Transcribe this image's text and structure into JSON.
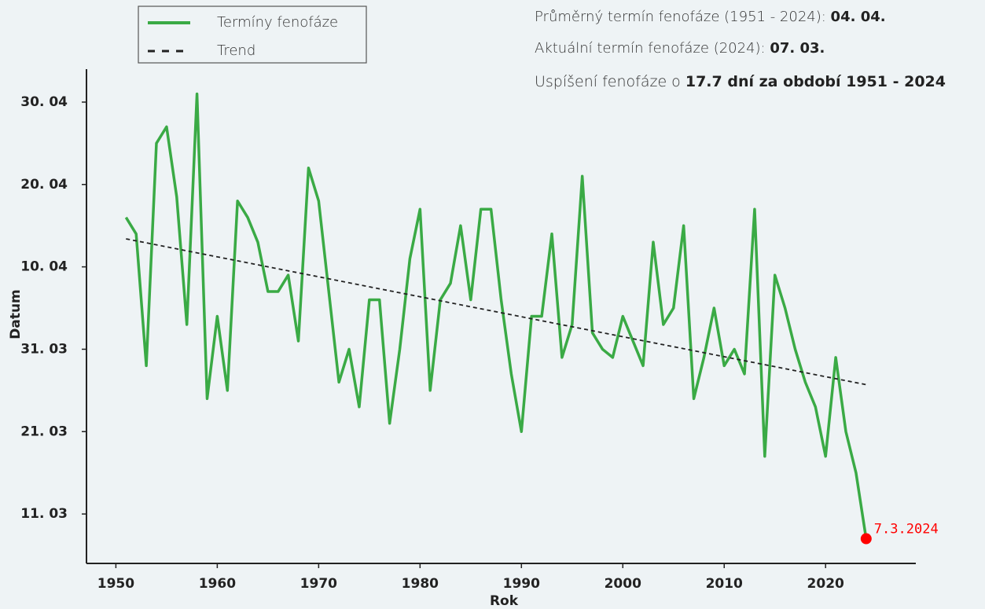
{
  "chart_data": {
    "type": "line",
    "x": [
      1951,
      1952,
      1953,
      1954,
      1955,
      1956,
      1957,
      1958,
      1959,
      1960,
      1961,
      1962,
      1963,
      1964,
      1965,
      1966,
      1967,
      1968,
      1969,
      1970,
      1971,
      1972,
      1973,
      1974,
      1975,
      1976,
      1977,
      1978,
      1979,
      1980,
      1981,
      1982,
      1983,
      1984,
      1985,
      1986,
      1987,
      1988,
      1989,
      1990,
      1991,
      1992,
      1993,
      1994,
      1995,
      1996,
      1997,
      1998,
      1999,
      2000,
      2001,
      2002,
      2003,
      2004,
      2005,
      2006,
      2007,
      2008,
      2009,
      2010,
      2011,
      2012,
      2013,
      2014,
      2015,
      2016,
      2017,
      2018,
      2019,
      2020,
      2021,
      2022,
      2023,
      2024
    ],
    "series": [
      {
        "name": "Termíny fenofáze",
        "color": "#3aaa45",
        "values": [
          106,
          104,
          88,
          115,
          117,
          108.5,
          93,
          121,
          84,
          94,
          85,
          108,
          106,
          103,
          97,
          97,
          99,
          91,
          112,
          108,
          97,
          86,
          90,
          83,
          96,
          96,
          81,
          90,
          101,
          107,
          85,
          96,
          98,
          105,
          96,
          107,
          107,
          96,
          87,
          80,
          94,
          94,
          104,
          89,
          93,
          111,
          92,
          90,
          89,
          94,
          91,
          88,
          103,
          93,
          95,
          105,
          84,
          89,
          95,
          88,
          90,
          87,
          107,
          77,
          99,
          95,
          90,
          86,
          83,
          77,
          89,
          80,
          75,
          67
        ]
      }
    ],
    "trend": {
      "name": "Trend",
      "color": "#222222",
      "x": [
        1951,
        2024
      ],
      "values": [
        103.4,
        85.7
      ]
    },
    "highlight": {
      "label": "7.3.2024",
      "color": "#ff0000"
    },
    "annotations": [
      [
        "Průměrný termín fenofáze (1951 - 2024): ",
        "04. 04."
      ],
      [
        "Aktuální termín fenofáze (2024): ",
        "07. 03."
      ],
      [
        "Uspíšení fenofáze o ",
        "17.7 dní za období 1951 - 2024"
      ]
    ],
    "xlabel": "Rok",
    "ylabel": "Datum",
    "xlim": [
      1947.1,
      2028.9
    ],
    "ylim": [
      64,
      124
    ],
    "xticks": [
      1950,
      1960,
      1970,
      1980,
      1990,
      2000,
      2010,
      2020
    ],
    "yticks": [
      {
        "value": 70,
        "label": "11. 03"
      },
      {
        "value": 80,
        "label": "21. 03"
      },
      {
        "value": 90,
        "label": "31. 03"
      },
      {
        "value": 100,
        "label": "10. 04"
      },
      {
        "value": 110,
        "label": "20. 04"
      },
      {
        "value": 120,
        "label": "30. 04"
      }
    ]
  }
}
